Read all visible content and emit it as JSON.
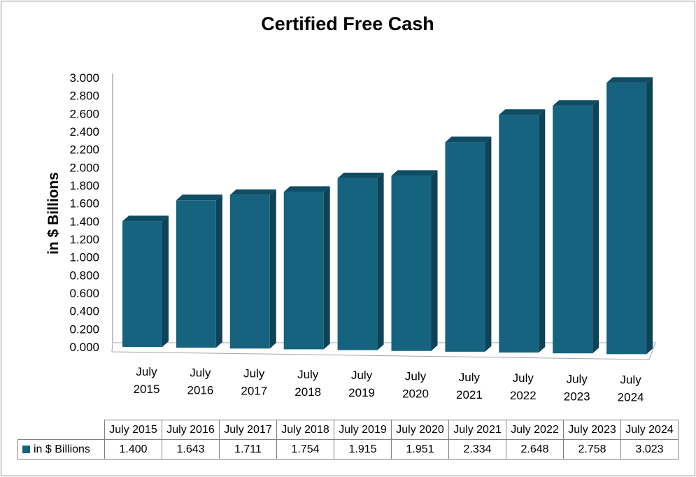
{
  "chart_data": {
    "type": "bar",
    "title": "Certified Free Cash",
    "ylabel": "in $ Billions",
    "xlabel": "",
    "ylim": [
      0,
      3.0
    ],
    "yticks": [
      "0.000",
      "0.200",
      "0.400",
      "0.600",
      "0.800",
      "1.000",
      "1.200",
      "1.400",
      "1.600",
      "1.800",
      "2.000",
      "2.200",
      "2.400",
      "2.600",
      "2.800",
      "3.000"
    ],
    "categories": [
      "July 2015",
      "July 2016",
      "July 2017",
      "July 2018",
      "July 2019",
      "July 2020",
      "July 2021",
      "July 2022",
      "July 2023",
      "July 2024"
    ],
    "category_lines": [
      [
        "July",
        "2015"
      ],
      [
        "July",
        "2016"
      ],
      [
        "July",
        "2017"
      ],
      [
        "July",
        "2018"
      ],
      [
        "July",
        "2019"
      ],
      [
        "July",
        "2020"
      ],
      [
        "July",
        "2021"
      ],
      [
        "July",
        "2022"
      ],
      [
        "July",
        "2023"
      ],
      [
        "July",
        "2024"
      ]
    ],
    "series": [
      {
        "name": "in $ Billions",
        "values": [
          1.4,
          1.643,
          1.711,
          1.754,
          1.915,
          1.951,
          2.334,
          2.648,
          2.758,
          3.023
        ],
        "labels": [
          "1.400",
          "1.643",
          "1.711",
          "1.754",
          "1.915",
          "1.951",
          "2.334",
          "2.648",
          "2.758",
          "3.023"
        ]
      }
    ],
    "colors": {
      "bar_front": "#16637f",
      "bar_side": "#0d4257",
      "bar_top": "#0f4d64"
    },
    "grid": false,
    "legend": "data-table-below",
    "data_table": true
  }
}
